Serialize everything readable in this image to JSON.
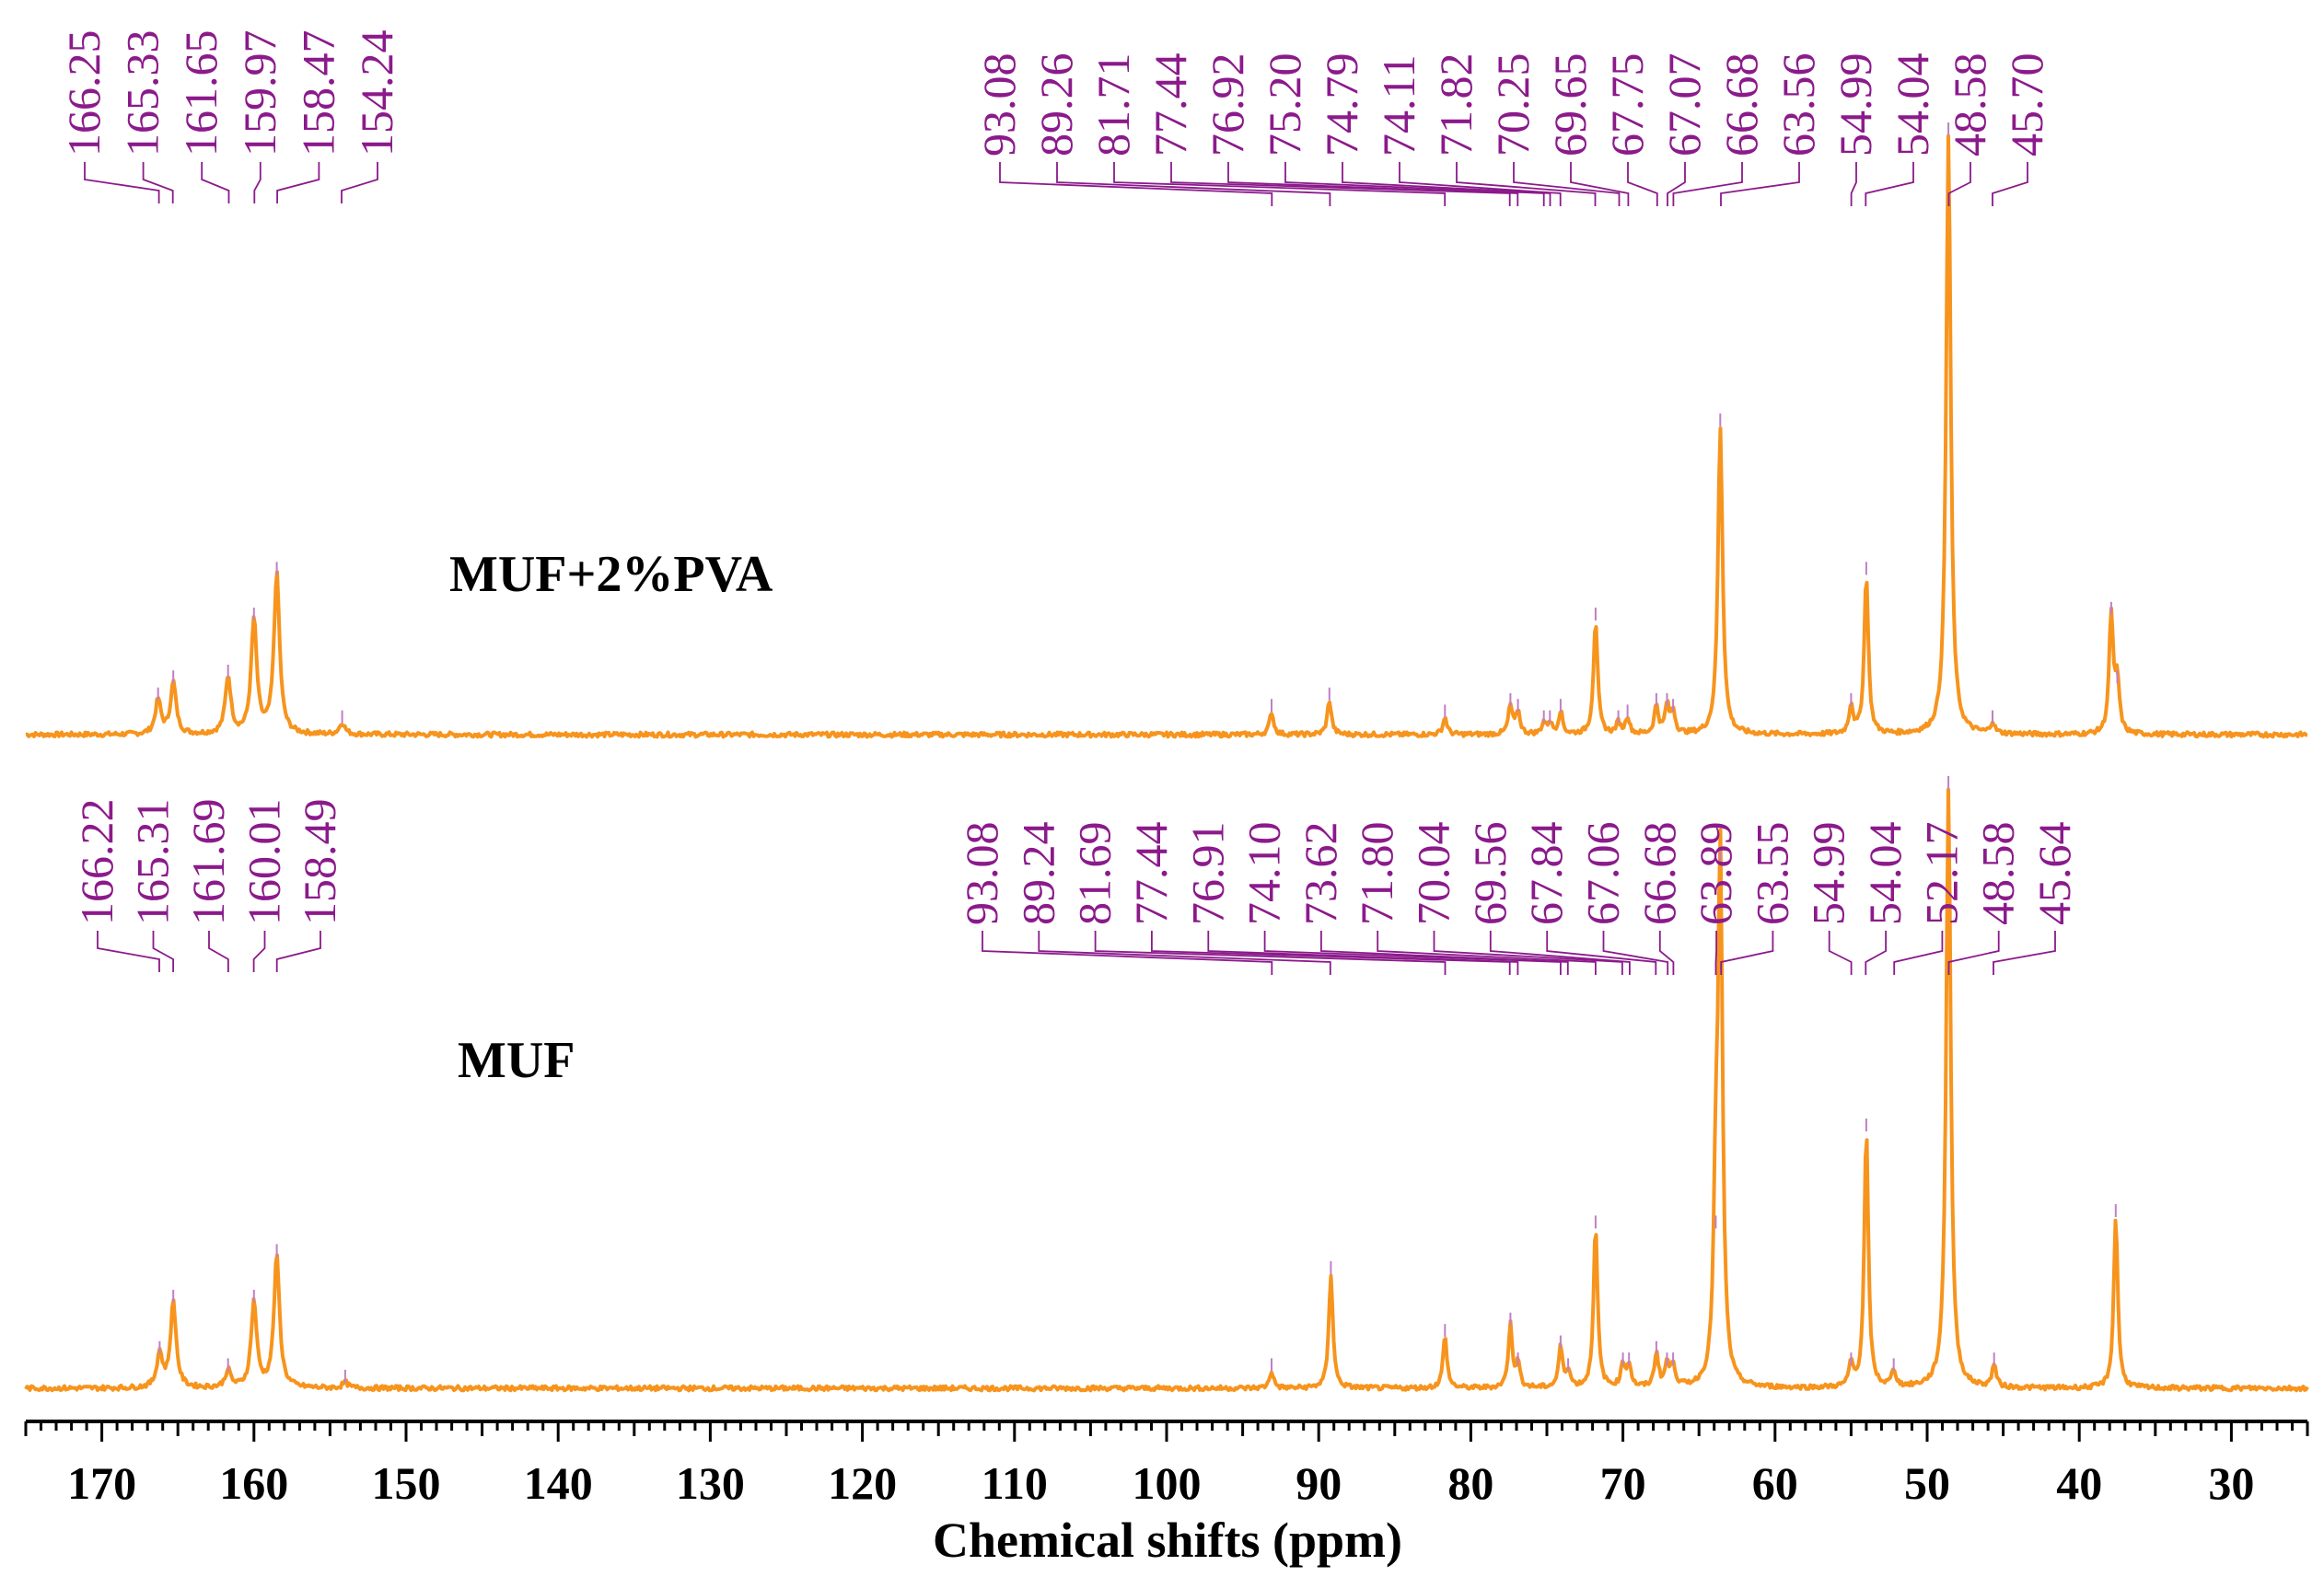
{
  "chart_data": {
    "type": "line",
    "title": "",
    "xlabel": "Chemical shifts (ppm)",
    "ylabel": "",
    "xlim": [
      175,
      25
    ],
    "x_ticks": [
      "170",
      "160",
      "150",
      "140",
      "130",
      "120",
      "110",
      "100",
      "90",
      "80",
      "70",
      "60",
      "50",
      "40",
      "30"
    ],
    "colors": {
      "spectrum": "#f7941d",
      "peak_label": "#8b1a8b"
    },
    "series": [
      {
        "name": "MUF+2%PVA",
        "peaks": [
          {
            "ppm": 166.3,
            "height": 0.06
          },
          {
            "ppm": 165.3,
            "height": 0.09
          },
          {
            "ppm": 161.7,
            "height": 0.1
          },
          {
            "ppm": 160.0,
            "height": 0.2
          },
          {
            "ppm": 158.5,
            "height": 0.28
          },
          {
            "ppm": 154.2,
            "height": 0.02
          },
          {
            "ppm": 93.1,
            "height": 0.04
          },
          {
            "ppm": 89.3,
            "height": 0.06
          },
          {
            "ppm": 81.7,
            "height": 0.03
          },
          {
            "ppm": 77.4,
            "height": 0.05
          },
          {
            "ppm": 76.9,
            "height": 0.04
          },
          {
            "ppm": 75.2,
            "height": 0.02
          },
          {
            "ppm": 74.8,
            "height": 0.02
          },
          {
            "ppm": 74.1,
            "height": 0.04
          },
          {
            "ppm": 71.8,
            "height": 0.2
          },
          {
            "ppm": 70.3,
            "height": 0.02
          },
          {
            "ppm": 69.7,
            "height": 0.03
          },
          {
            "ppm": 67.8,
            "height": 0.05
          },
          {
            "ppm": 67.1,
            "height": 0.05
          },
          {
            "ppm": 66.7,
            "height": 0.04
          },
          {
            "ppm": 63.6,
            "height": 0.54
          },
          {
            "ppm": 55.0,
            "height": 0.05
          },
          {
            "ppm": 54.0,
            "height": 0.28
          },
          {
            "ppm": 48.6,
            "height": 1.05
          },
          {
            "ppm": 45.7,
            "height": 0.02
          },
          {
            "ppm": 37.9,
            "height": 0.21
          },
          {
            "ppm": 37.5,
            "height": 0.09
          }
        ]
      },
      {
        "name": "MUF",
        "peaks": [
          {
            "ppm": 166.2,
            "height": 0.06
          },
          {
            "ppm": 165.3,
            "height": 0.15
          },
          {
            "ppm": 161.7,
            "height": 0.03
          },
          {
            "ppm": 160.0,
            "height": 0.15
          },
          {
            "ppm": 158.5,
            "height": 0.23
          },
          {
            "ppm": 154.0,
            "height": 0.01
          },
          {
            "ppm": 93.1,
            "height": 0.03
          },
          {
            "ppm": 89.2,
            "height": 0.2
          },
          {
            "ppm": 81.7,
            "height": 0.09
          },
          {
            "ppm": 77.4,
            "height": 0.11
          },
          {
            "ppm": 76.9,
            "height": 0.04
          },
          {
            "ppm": 74.1,
            "height": 0.07
          },
          {
            "ppm": 73.6,
            "height": 0.03
          },
          {
            "ppm": 71.8,
            "height": 0.28
          },
          {
            "ppm": 70.0,
            "height": 0.04
          },
          {
            "ppm": 69.6,
            "height": 0.04
          },
          {
            "ppm": 67.8,
            "height": 0.06
          },
          {
            "ppm": 67.1,
            "height": 0.04
          },
          {
            "ppm": 66.7,
            "height": 0.04
          },
          {
            "ppm": 63.9,
            "height": 0.28
          },
          {
            "ppm": 63.6,
            "height": 0.92
          },
          {
            "ppm": 55.0,
            "height": 0.04
          },
          {
            "ppm": 54.0,
            "height": 0.45
          },
          {
            "ppm": 52.2,
            "height": 0.03
          },
          {
            "ppm": 48.6,
            "height": 1.05
          },
          {
            "ppm": 45.6,
            "height": 0.04
          },
          {
            "ppm": 37.6,
            "height": 0.3
          }
        ]
      }
    ],
    "peak_labels": [
      {
        "spectrum": "MUF+2%PVA",
        "groups": [
          {
            "labels": [
              "166.25",
              "165.33",
              "161.65",
              "159.97",
              "158.47",
              "154.24"
            ],
            "targets": [
              166.25,
              165.33,
              161.65,
              159.97,
              158.47,
              154.24
            ]
          },
          {
            "labels": [
              "93.08",
              "89.26",
              "81.71",
              "77.44",
              "76.92",
              "75.20",
              "74.79",
              "74.11",
              "71.82",
              "70.25",
              "69.65",
              "67.75",
              "67.07",
              "66.68",
              "63.56",
              "54.99",
              "54.04",
              "48.58",
              "45.70"
            ],
            "targets": [
              93.08,
              89.26,
              81.71,
              77.44,
              76.92,
              75.2,
              74.79,
              74.11,
              71.82,
              70.25,
              69.65,
              67.75,
              67.07,
              66.68,
              63.56,
              54.99,
              54.04,
              48.58,
              45.7
            ]
          }
        ]
      },
      {
        "spectrum": "MUF",
        "groups": [
          {
            "labels": [
              "166.22",
              "165.31",
              "161.69",
              "160.01",
              "158.49"
            ],
            "targets": [
              166.22,
              165.31,
              161.69,
              160.01,
              158.49
            ]
          },
          {
            "labels": [
              "93.08",
              "89.24",
              "81.69",
              "77.44",
              "76.91",
              "74.10",
              "73.62",
              "71.80",
              "70.04",
              "69.56",
              "67.84",
              "67.06",
              "66.68",
              "63.89",
              "63.55",
              "54.99",
              "54.04",
              "52.17",
              "48.58",
              "45.64"
            ],
            "targets": [
              93.08,
              89.24,
              81.69,
              77.44,
              76.91,
              74.1,
              73.62,
              71.8,
              70.04,
              69.56,
              67.84,
              67.06,
              66.68,
              63.89,
              63.55,
              54.99,
              54.04,
              52.17,
              48.58,
              45.64
            ]
          }
        ]
      }
    ]
  }
}
